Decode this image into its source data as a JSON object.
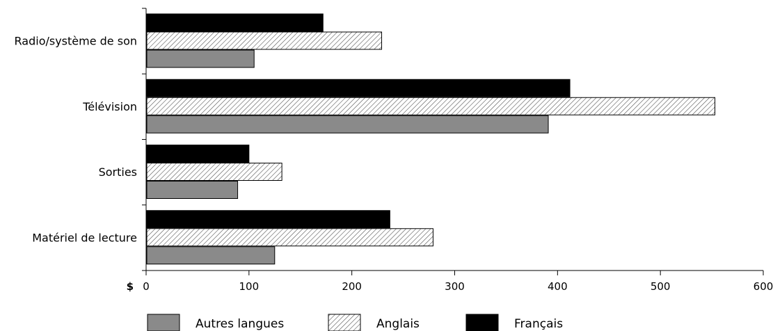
{
  "chart_data": {
    "type": "bar",
    "orientation": "horizontal",
    "categories": [
      "Radio/système de son",
      "Télévision",
      "Sorties",
      "Matériel de lecture"
    ],
    "series": [
      {
        "name": "Français",
        "values": [
          172,
          412,
          100,
          237
        ],
        "color": "#000000",
        "fill": "solid"
      },
      {
        "name": "Anglais",
        "values": [
          229,
          553,
          132,
          279
        ],
        "color": "#ffffff",
        "fill": "hatched"
      },
      {
        "name": "Autres langues",
        "values": [
          105,
          391,
          89,
          125
        ],
        "color": "#8a8a8a",
        "fill": "solid"
      }
    ],
    "xlabel": "$",
    "xlim": [
      0,
      600
    ],
    "xticks": [
      "0",
      "100",
      "200",
      "300",
      "400",
      "500",
      "600"
    ],
    "grid": false,
    "legend": {
      "placement": "bottom",
      "order": [
        "Autres langues",
        "Anglais",
        "Français"
      ]
    }
  }
}
